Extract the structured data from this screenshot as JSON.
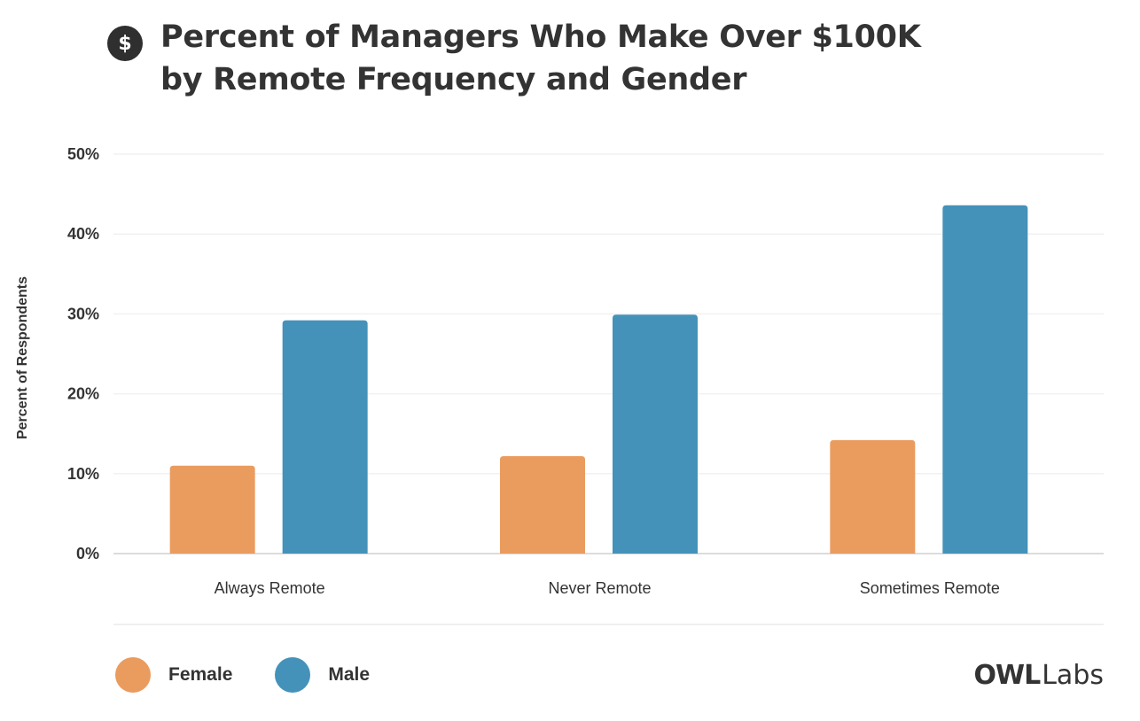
{
  "header": {
    "icon": "dollar-icon",
    "icon_glyph": "$",
    "title_line1": "Percent of Managers Who Make Over $100K",
    "title_line2": "by Remote Frequency and Gender"
  },
  "chart_data": {
    "type": "bar",
    "title": "Percent of Managers Who Make Over $100K by Remote Frequency and Gender",
    "xlabel": "",
    "ylabel": "Percent of Respondents",
    "categories": [
      "Always Remote",
      "Never Remote",
      "Sometimes Remote"
    ],
    "series": [
      {
        "name": "Female",
        "color": "#EA9C5E",
        "values": [
          11,
          12.2,
          14.2
        ]
      },
      {
        "name": "Male",
        "color": "#4492BA",
        "values": [
          29.2,
          29.9,
          43.6
        ]
      }
    ],
    "ylim": [
      0,
      50
    ],
    "yticks": [
      0,
      10,
      20,
      30,
      40,
      50
    ],
    "ytick_labels": [
      "0%",
      "10%",
      "20%",
      "30%",
      "40%",
      "50%"
    ],
    "grid": true,
    "legend_position": "bottom-left"
  },
  "legend": {
    "items": [
      {
        "label": "Female",
        "color": "#EA9C5E"
      },
      {
        "label": "Male",
        "color": "#4492BA"
      }
    ]
  },
  "branding": {
    "logo_owl": "OWL",
    "logo_labs": "Labs"
  }
}
